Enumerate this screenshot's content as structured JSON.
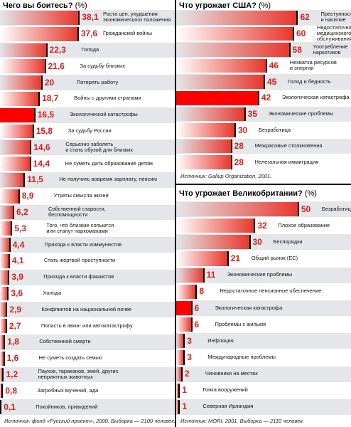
{
  "chart_data": [
    {
      "type": "bar",
      "title": "Чего вы боитесь?",
      "title_unit": "(%)",
      "categories": [
        "Роста цен, ухудшения\nэкономического положения",
        "Гражданской войны",
        "Голода",
        "За судьбу близких",
        "Потерять работу",
        "Войны с другими странами",
        "Экологической катастрофы",
        "За судьбу России",
        "Серьезно заболеть\nи стать обузой для близких",
        "Не суметь дать образование детям",
        "Не получить вовремя зарплату, пенсию",
        "Утраты смысла жизни",
        "Собственной старости,\nбеспомощности",
        "Того, что близкие сопьются\nили станут наркоманами",
        "Прихода к власти коммунистов",
        "Стать жертвой преступности",
        "Прихода к власти фашистов",
        "Холода",
        "Конфликтов на национальной почве",
        "Попасть в авиа- или автокатастрофу",
        "Собственной смерти",
        "Не суметь создать семью",
        "Пауков, тараканов, змей, других\nнеприятных животных",
        "Загробных мучений, ада",
        "Покойников, привидений"
      ],
      "values": [
        38.1,
        37.6,
        22.3,
        21.6,
        20,
        18.7,
        16.5,
        15.8,
        14.6,
        14.4,
        11.5,
        8.9,
        6.2,
        5.3,
        4.4,
        4.1,
        3.9,
        3.6,
        2.9,
        2.7,
        1.8,
        1.6,
        1.2,
        0.8,
        0.1
      ],
      "value_labels": [
        "38,1",
        "37,6",
        "22,3",
        "21,6",
        "20",
        "18,7",
        "16,5",
        "15,8",
        "14,6",
        "14,4",
        "11,5",
        "8,9",
        "6,2",
        "5,3",
        "4,4",
        "4,1",
        "3,9",
        "3,6",
        "2,9",
        "2,7",
        "1,8",
        "1,6",
        "1,2",
        "0,8",
        "0,1"
      ],
      "colors": [
        "#e8372c",
        "#e8372c",
        "#e8372c",
        "#e8372c",
        "#e8372c",
        "#e8372c",
        "#ff0000",
        "#e8372c",
        "#e8372c",
        "#e8372c",
        "#e8372c",
        "#e8372c",
        "#e8372c",
        "#e8372c",
        "#e8372c",
        "#e8372c",
        "#e8372c",
        "#e8372c",
        "#e8372c",
        "#e8372c",
        "#e8372c",
        "#e8372c",
        "#e8372c",
        "#e8372c",
        "#e8372c"
      ],
      "xlim": [
        0,
        85
      ],
      "source": "Источник: фонд «Русский проект», 2000. Выборка — 2100 человек."
    },
    {
      "type": "bar",
      "title": "Что угрожает США?",
      "title_unit": "(%)",
      "categories": [
        "Преступность\nи насилие",
        "Недостаточность\nмедицинского\nобслуживания",
        "Употребление\nнаркотиков",
        "Нехватка ресурсов\nи энергии",
        "Голод и бедность",
        "Экологическая катастрофа",
        "Экономические проблемы",
        "Безработица",
        "Межрасовые столкновения",
        "Нелегальная иммиграция"
      ],
      "values": [
        62,
        60,
        58,
        46,
        45,
        42,
        35,
        30,
        28,
        28
      ],
      "colors": [
        "#e8372c",
        "#e8372c",
        "#e8372c",
        "#e8372c",
        "#e8372c",
        "#ff0000",
        "#e8372c",
        "#e8372c",
        "#e8372c",
        "#e8372c"
      ],
      "xlim": [
        0,
        90
      ],
      "source": "Источник: Gallup Organization, 2001."
    },
    {
      "type": "bar",
      "title": "Что угрожает Великобритании?",
      "title_unit": "(%)",
      "categories": [
        "Безработица",
        "Плохое образование",
        "Беспорядки",
        "Общий рынок (ЕС)",
        "Экономические проблемы",
        "Недостаточное пенсионное обеспечение",
        "Экологическая катастрофа",
        "Проблемы с жильем",
        "Инфляция",
        "Международные проблемы",
        "Чиновники на местах",
        "Гонка вооружений",
        "Северная Ирландия"
      ],
      "values": [
        50,
        32,
        30,
        21,
        11,
        8,
        6,
        6,
        3,
        3,
        2,
        1,
        1
      ],
      "colors": [
        "#e8372c",
        "#e8372c",
        "#e8372c",
        "#e8372c",
        "#e8372c",
        "#e8372c",
        "#ff0000",
        "#e8372c",
        "#e8372c",
        "#e8372c",
        "#e8372c",
        "#e8372c",
        "#e8372c"
      ],
      "xlim": [
        0,
        72
      ],
      "source": "Источник: MORI, 2001. Выборка — 2110 человек."
    }
  ]
}
